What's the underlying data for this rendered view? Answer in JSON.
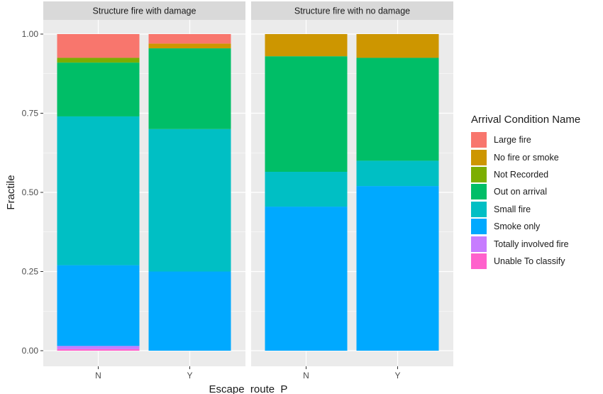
{
  "chart_data": {
    "type": "bar",
    "stacked": true,
    "panels": [
      {
        "title": "Structure fire with damage",
        "categories": [
          "N",
          "Y"
        ],
        "series": [
          {
            "name": "Large fire",
            "values": [
              0.075,
              0.03
            ]
          },
          {
            "name": "No fire or smoke",
            "values": [
              0.0,
              0.015
            ]
          },
          {
            "name": "Not Recorded",
            "values": [
              0.015,
              0.0
            ]
          },
          {
            "name": "Out on arrival",
            "values": [
              0.17,
              0.255
            ]
          },
          {
            "name": "Small fire",
            "values": [
              0.47,
              0.45
            ]
          },
          {
            "name": "Smoke only",
            "values": [
              0.255,
              0.25
            ]
          },
          {
            "name": "Totally involved fire",
            "values": [
              0.01,
              0.0
            ]
          },
          {
            "name": "Unable To classify",
            "values": [
              0.005,
              0.0
            ]
          }
        ]
      },
      {
        "title": "Structure fire with no damage",
        "categories": [
          "N",
          "Y"
        ],
        "series": [
          {
            "name": "Large fire",
            "values": [
              0.0,
              0.0
            ]
          },
          {
            "name": "No fire or smoke",
            "values": [
              0.07,
              0.075
            ]
          },
          {
            "name": "Not Recorded",
            "values": [
              0.0,
              0.0
            ]
          },
          {
            "name": "Out on arrival",
            "values": [
              0.365,
              0.325
            ]
          },
          {
            "name": "Small fire",
            "values": [
              0.11,
              0.08
            ]
          },
          {
            "name": "Smoke only",
            "values": [
              0.455,
              0.52
            ]
          },
          {
            "name": "Totally involved fire",
            "values": [
              0.0,
              0.0
            ]
          },
          {
            "name": "Unable To classify",
            "values": [
              0.0,
              0.0
            ]
          }
        ]
      }
    ],
    "xlabel": "Escape_route_P",
    "ylabel": "Fractile",
    "ylim": [
      0,
      1
    ],
    "yticks": [
      "0.00",
      "0.25",
      "0.50",
      "0.75",
      "1.00"
    ],
    "yticks_values": [
      0,
      0.25,
      0.5,
      0.75,
      1.0
    ],
    "grid": true,
    "legend": {
      "title": "Arrival Condition Name",
      "position": "right",
      "entries": [
        {
          "label": "Large fire",
          "color": "#F8766D"
        },
        {
          "label": "No fire or smoke",
          "color": "#CD9600"
        },
        {
          "label": "Not Recorded",
          "color": "#7CAE00"
        },
        {
          "label": "Out on arrival",
          "color": "#00BE67"
        },
        {
          "label": "Small fire",
          "color": "#00BFC4"
        },
        {
          "label": "Smoke only",
          "color": "#00A9FF"
        },
        {
          "label": "Totally involved fire",
          "color": "#C77CFF"
        },
        {
          "label": "Unable To classify",
          "color": "#FF61CC"
        }
      ]
    }
  }
}
